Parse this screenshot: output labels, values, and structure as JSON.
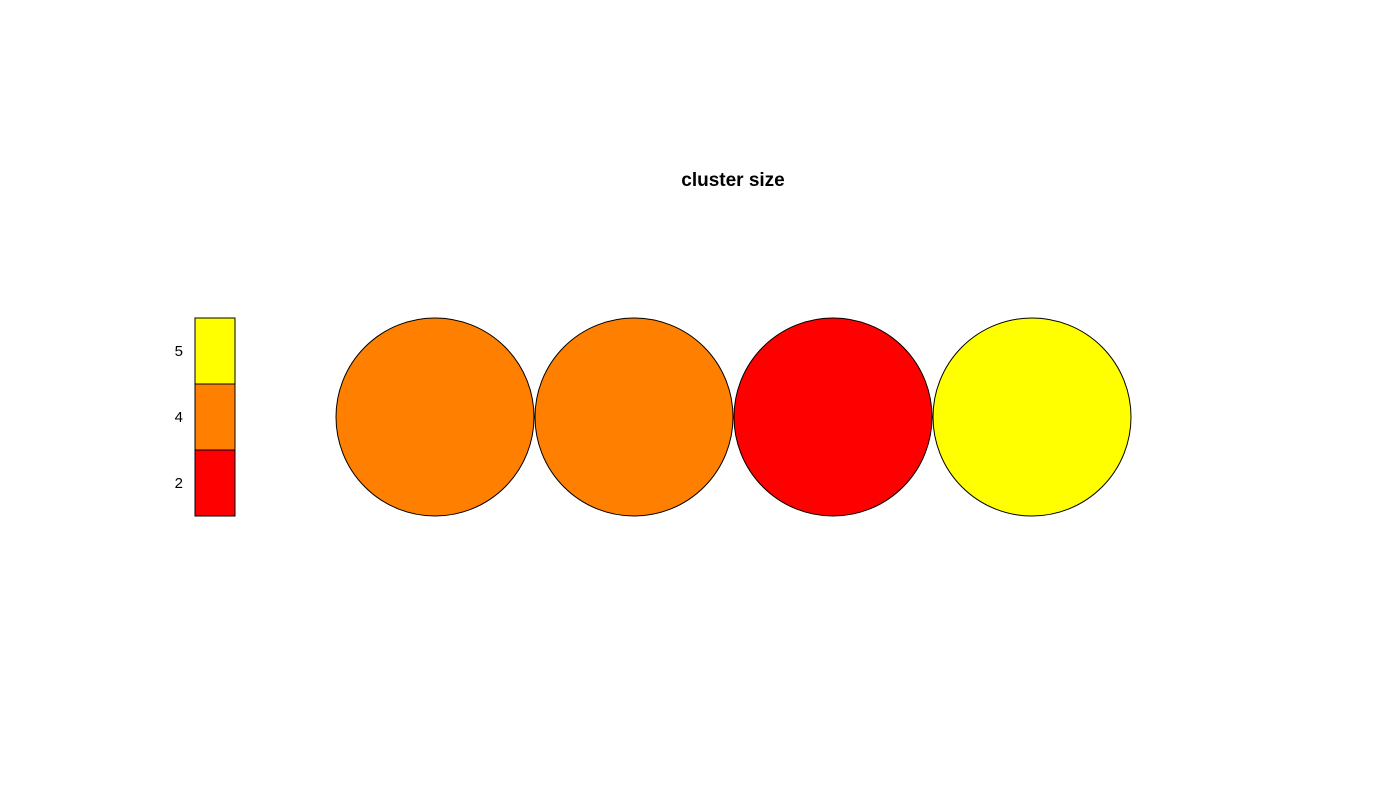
{
  "chart_data": {
    "type": "other",
    "title": "cluster size",
    "nodes": [
      {
        "value": 4,
        "color": "#FF8000"
      },
      {
        "value": 4,
        "color": "#FF8000"
      },
      {
        "value": 2,
        "color": "#FF0000"
      },
      {
        "value": 5,
        "color": "#FFFF00"
      }
    ],
    "legend": {
      "placement": "left",
      "entries": [
        {
          "label": "5",
          "color": "#FFFF00"
        },
        {
          "label": "4",
          "color": "#FF8000"
        },
        {
          "label": "2",
          "color": "#FF0000"
        }
      ]
    }
  }
}
